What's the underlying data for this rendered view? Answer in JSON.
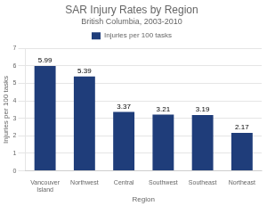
{
  "chart_data": {
    "type": "bar",
    "title": "SAR Injury Rates by Region",
    "subtitle": "British Columbia, 2003-2010",
    "xlabel": "Region",
    "ylabel": "Injuries per 100 tasks",
    "categories": [
      "Vancouver Island",
      "Northwest",
      "Central",
      "Southwest",
      "Southeast",
      "Northeast"
    ],
    "series": [
      {
        "name": "Injuries per 100 tasks",
        "color": "#1F3D7A",
        "values": [
          5.99,
          5.39,
          3.37,
          3.21,
          3.19,
          2.17
        ]
      }
    ],
    "ylim": [
      0,
      7
    ],
    "yticks": [
      0,
      1,
      2,
      3,
      4,
      5,
      6,
      7
    ],
    "grid": true,
    "legend": "top",
    "data_labels": true
  }
}
